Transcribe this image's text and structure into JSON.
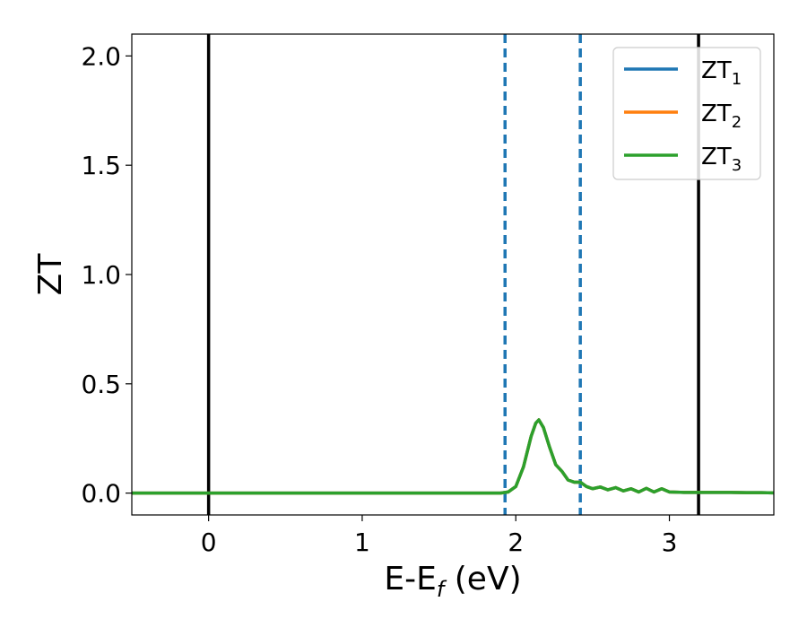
{
  "chart_data": {
    "type": "line",
    "xlabel_main": "E-E",
    "xlabel_sub": "f",
    "xlabel_unit": " (eV)",
    "ylabel": "ZT",
    "xlim": [
      -0.5,
      3.68
    ],
    "ylim": [
      -0.1,
      2.1
    ],
    "xticks": [
      0,
      1,
      2,
      3
    ],
    "yticks": [
      0.0,
      0.5,
      1.0,
      1.5,
      2.0
    ],
    "ytick_labels": [
      "0.0",
      "0.5",
      "1.0",
      "1.5",
      "2.0"
    ],
    "grid": false,
    "legend_position": "top-right",
    "series": [
      {
        "name_main": "ZT",
        "name_sub": "1",
        "color": "#1f77b4",
        "x": [
          -0.5,
          1.9,
          1.95,
          2.0,
          2.05,
          2.1,
          2.13,
          2.15,
          2.18,
          2.22,
          2.26,
          2.3,
          2.34,
          2.38,
          2.42,
          2.46,
          2.5,
          2.55,
          2.6,
          2.65,
          2.7,
          2.75,
          2.8,
          2.85,
          2.9,
          2.95,
          3.0,
          3.1,
          3.2,
          3.3,
          3.4,
          3.5,
          3.6,
          3.68
        ],
        "y": [
          0.0,
          0.0,
          0.005,
          0.03,
          0.12,
          0.26,
          0.32,
          0.335,
          0.3,
          0.21,
          0.13,
          0.1,
          0.06,
          0.05,
          0.05,
          0.03,
          0.02,
          0.028,
          0.015,
          0.025,
          0.01,
          0.02,
          0.005,
          0.022,
          0.005,
          0.02,
          0.005,
          0.003,
          0.003,
          0.003,
          0.003,
          0.002,
          0.002,
          0.001
        ]
      },
      {
        "name_main": "ZT",
        "name_sub": "2",
        "color": "#ff7f0e",
        "x": [
          -0.5,
          1.9,
          1.95,
          2.0,
          2.05,
          2.1,
          2.13,
          2.15,
          2.18,
          2.22,
          2.26,
          2.3,
          2.34,
          2.38,
          2.42,
          2.46,
          2.5,
          2.55,
          2.6,
          2.65,
          2.7,
          2.75,
          2.8,
          2.85,
          2.9,
          2.95,
          3.0,
          3.1,
          3.2,
          3.3,
          3.4,
          3.5,
          3.6,
          3.68
        ],
        "y": [
          0.0,
          0.0,
          0.005,
          0.03,
          0.12,
          0.26,
          0.32,
          0.335,
          0.3,
          0.21,
          0.13,
          0.1,
          0.06,
          0.05,
          0.05,
          0.03,
          0.02,
          0.028,
          0.015,
          0.025,
          0.01,
          0.02,
          0.005,
          0.022,
          0.005,
          0.02,
          0.005,
          0.003,
          0.003,
          0.003,
          0.003,
          0.002,
          0.002,
          0.001
        ]
      },
      {
        "name_main": "ZT",
        "name_sub": "3",
        "color": "#2ca02c",
        "x": [
          -0.5,
          1.9,
          1.95,
          2.0,
          2.05,
          2.1,
          2.13,
          2.15,
          2.18,
          2.22,
          2.26,
          2.3,
          2.34,
          2.38,
          2.42,
          2.46,
          2.5,
          2.55,
          2.6,
          2.65,
          2.7,
          2.75,
          2.8,
          2.85,
          2.9,
          2.95,
          3.0,
          3.1,
          3.2,
          3.3,
          3.4,
          3.5,
          3.6,
          3.68
        ],
        "y": [
          0.0,
          0.0,
          0.005,
          0.03,
          0.12,
          0.26,
          0.32,
          0.335,
          0.3,
          0.21,
          0.13,
          0.1,
          0.06,
          0.05,
          0.05,
          0.03,
          0.02,
          0.028,
          0.015,
          0.025,
          0.01,
          0.02,
          0.005,
          0.022,
          0.005,
          0.02,
          0.005,
          0.003,
          0.003,
          0.003,
          0.003,
          0.002,
          0.002,
          0.001
        ]
      }
    ],
    "vlines": [
      {
        "x": 0.0,
        "color": "#000000",
        "style": "solid"
      },
      {
        "x": 1.93,
        "color": "#1f77b4",
        "style": "dashed"
      },
      {
        "x": 2.42,
        "color": "#1f77b4",
        "style": "dashed"
      },
      {
        "x": 3.19,
        "color": "#000000",
        "style": "solid"
      }
    ]
  }
}
